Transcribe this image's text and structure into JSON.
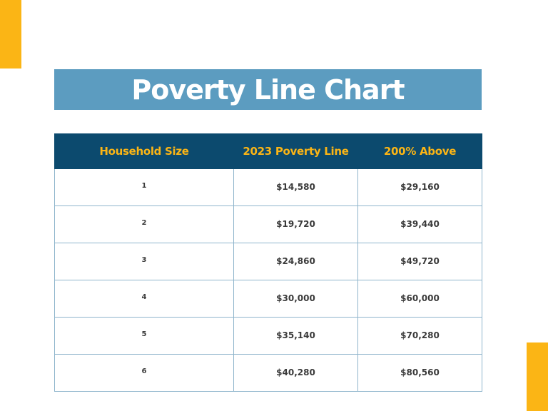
{
  "title": "Poverty Line Chart",
  "colors": {
    "accent": "#fbb515",
    "banner": "#5c9cc0",
    "header": "#0c4a6e",
    "header_text": "#fbb515",
    "border": "#8fb5cc"
  },
  "table": {
    "headers": [
      "Household Size",
      "2023 Poverty Line",
      "200% Above"
    ],
    "rows": [
      {
        "size": "1",
        "poverty_line": "$14,580",
        "above_200": "$29,160"
      },
      {
        "size": "2",
        "poverty_line": "$19,720",
        "above_200": "$39,440"
      },
      {
        "size": "3",
        "poverty_line": "$24,860",
        "above_200": "$49,720"
      },
      {
        "size": "4",
        "poverty_line": "$30,000",
        "above_200": "$60,000"
      },
      {
        "size": "5",
        "poverty_line": "$35,140",
        "above_200": "$70,280"
      },
      {
        "size": "6",
        "poverty_line": "$40,280",
        "above_200": "$80,560"
      }
    ]
  }
}
